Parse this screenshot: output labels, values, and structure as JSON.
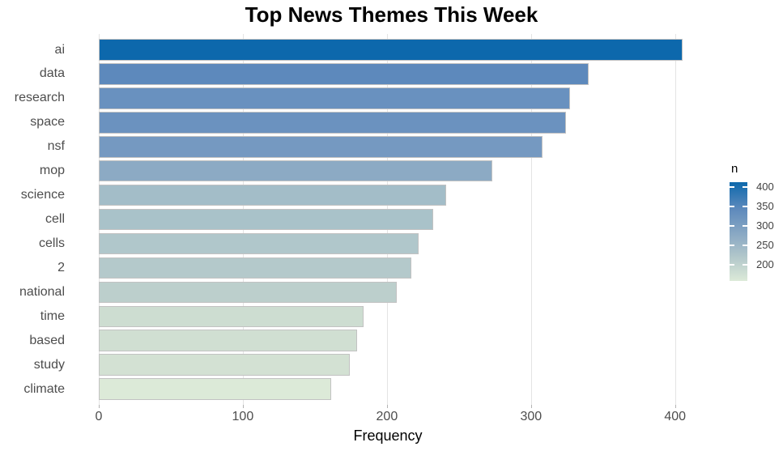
{
  "chart_data": {
    "type": "bar",
    "orientation": "horizontal",
    "title": "Top News Themes This Week",
    "xlabel": "Frequency",
    "ylabel": "",
    "categories": [
      "ai",
      "data",
      "research",
      "space",
      "nsf",
      "mop",
      "science",
      "cell",
      "cells",
      "2",
      "national",
      "time",
      "based",
      "study",
      "climate"
    ],
    "values": [
      405,
      340,
      327,
      324,
      308,
      273,
      241,
      232,
      222,
      217,
      207,
      184,
      179,
      174,
      161
    ],
    "bar_colors": [
      "#0d68ac",
      "#5d89bc",
      "#6991bf",
      "#6b92bf",
      "#7599c1",
      "#8caac4",
      "#a3bdc8",
      "#a9c2c9",
      "#b0c7cb",
      "#b4c9cb",
      "#bccfcc",
      "#cdddd1",
      "#d0dfd2",
      "#d3e1d3",
      "#dcead8"
    ],
    "x_ticks": [
      0,
      100,
      200,
      300,
      400
    ],
    "xlim": [
      0,
      426
    ],
    "grid": "major-x-only",
    "legend": {
      "title": "n",
      "ticks": [
        400,
        350,
        300,
        250,
        200
      ],
      "domain_min": 158,
      "domain_max": 412,
      "position": "right",
      "gradient_stops": [
        {
          "pos": 0.0,
          "color": "#0d68ac"
        },
        {
          "pos": 0.27,
          "color": "#5d89bc"
        },
        {
          "pos": 0.54,
          "color": "#8caac4"
        },
        {
          "pos": 0.77,
          "color": "#b4c9cb"
        },
        {
          "pos": 1.0,
          "color": "#dcead8"
        }
      ]
    },
    "colors": {
      "background": "#ffffff",
      "gridline": "#e4e4e4",
      "bar_border": "#c2c2c2",
      "axis_text": "#4d4d4d",
      "title_text": "#000000",
      "axis_title_text": "#000000",
      "tick_mark": "#b3b3b3",
      "legend_tick_dash": "#ffffff"
    }
  }
}
